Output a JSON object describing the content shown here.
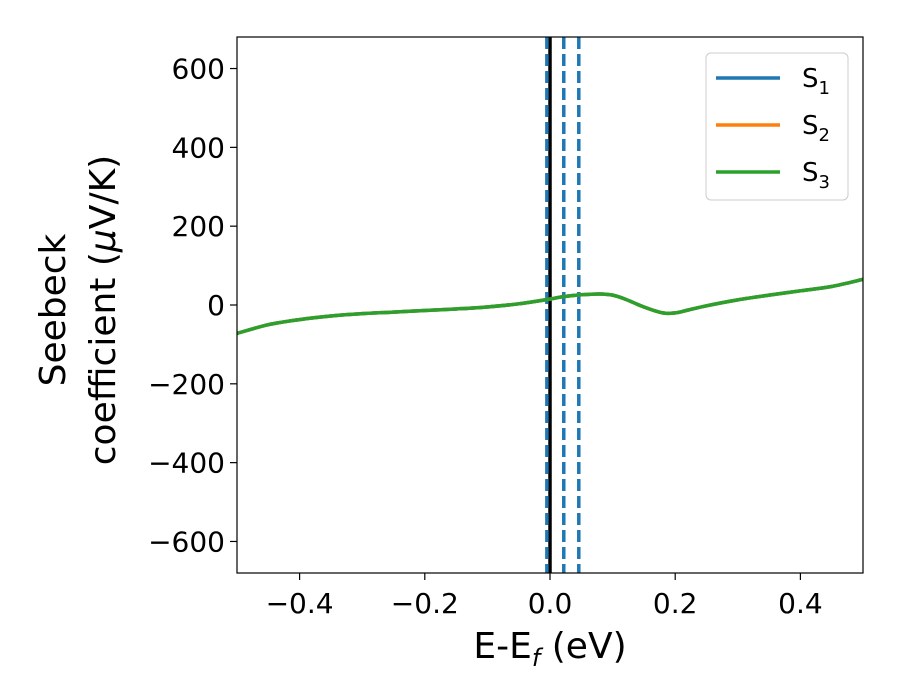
{
  "chart_data": {
    "type": "line",
    "title": "",
    "xlabel": {
      "main": "E-E",
      "sub": "f",
      "tail": " (eV)"
    },
    "ylabel": {
      "line1": "Seebeck",
      "line2_text": "coefficient  (",
      "line2_greek": "μ",
      "line2_tail": "V/K)"
    },
    "xlim": [
      -0.5,
      0.5
    ],
    "ylim": [
      -680,
      680
    ],
    "x_ticks": [
      -0.4,
      -0.2,
      0.0,
      0.2,
      0.4
    ],
    "x_tick_labels": [
      "−0.4",
      "−0.2",
      "0.0",
      "0.2",
      "0.4"
    ],
    "y_ticks": [
      600,
      400,
      200,
      0,
      -200,
      -400,
      -600
    ],
    "y_tick_labels": [
      "600",
      "400",
      "200",
      "0",
      "−200",
      "−400",
      "−600"
    ],
    "grid": false,
    "legend_placement": "top-right",
    "series": [
      {
        "name": "S",
        "sub": "1",
        "color": "#1f77b4",
        "x": [
          -0.5,
          -0.45,
          -0.4,
          -0.35,
          -0.3,
          -0.25,
          -0.2,
          -0.15,
          -0.1,
          -0.05,
          0.0,
          0.02,
          0.05,
          0.08,
          0.1,
          0.12,
          0.15,
          0.18,
          0.2,
          0.22,
          0.25,
          0.3,
          0.35,
          0.4,
          0.45,
          0.5
        ],
        "y": [
          -72,
          -50,
          -37,
          -28,
          -22,
          -18,
          -14,
          -10,
          -5,
          3,
          15,
          21,
          26,
          28,
          25,
          15,
          -5,
          -20,
          -20,
          -13,
          -2,
          13,
          25,
          36,
          47,
          65
        ]
      },
      {
        "name": "S",
        "sub": "2",
        "color": "#ff7f0e",
        "x": [
          -0.5,
          -0.45,
          -0.4,
          -0.35,
          -0.3,
          -0.25,
          -0.2,
          -0.15,
          -0.1,
          -0.05,
          0.0,
          0.02,
          0.05,
          0.08,
          0.1,
          0.12,
          0.15,
          0.18,
          0.2,
          0.22,
          0.25,
          0.3,
          0.35,
          0.4,
          0.45,
          0.5
        ],
        "y": [
          -72,
          -50,
          -37,
          -28,
          -22,
          -18,
          -14,
          -10,
          -5,
          3,
          15,
          21,
          26,
          28,
          25,
          15,
          -5,
          -20,
          -20,
          -13,
          -2,
          13,
          25,
          36,
          47,
          65
        ]
      },
      {
        "name": "S",
        "sub": "3",
        "color": "#2ca02c",
        "x": [
          -0.5,
          -0.45,
          -0.4,
          -0.35,
          -0.3,
          -0.25,
          -0.2,
          -0.15,
          -0.1,
          -0.05,
          0.0,
          0.02,
          0.05,
          0.08,
          0.1,
          0.12,
          0.15,
          0.18,
          0.2,
          0.22,
          0.25,
          0.3,
          0.35,
          0.4,
          0.45,
          0.5
        ],
        "y": [
          -72,
          -50,
          -37,
          -28,
          -22,
          -18,
          -14,
          -10,
          -5,
          3,
          15,
          21,
          26,
          28,
          25,
          15,
          -5,
          -20,
          -20,
          -13,
          -2,
          13,
          25,
          36,
          47,
          65
        ]
      }
    ],
    "vertical_lines": [
      {
        "x": 0.0,
        "color": "#000000",
        "style": "solid"
      },
      {
        "x": -0.005,
        "color": "#1f77b4",
        "style": "dashed"
      },
      {
        "x": 0.022,
        "color": "#1f77b4",
        "style": "dashed"
      },
      {
        "x": 0.046,
        "color": "#1f77b4",
        "style": "dashed"
      }
    ]
  }
}
